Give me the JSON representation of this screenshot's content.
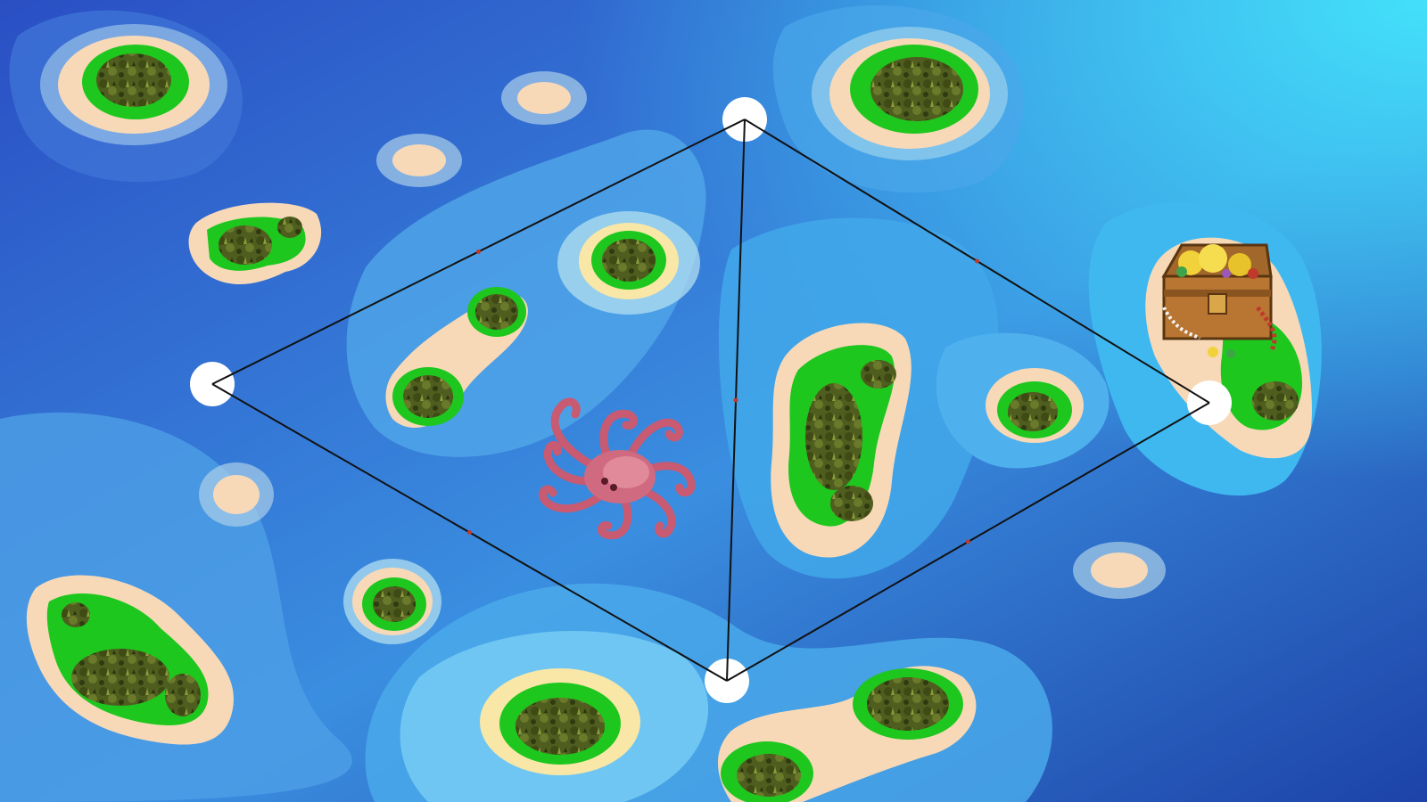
{
  "game": {
    "kind": "island-graph-puzzle",
    "palette": {
      "ocean_deep": "#2a4fc4",
      "ocean_light": "#43d6f5",
      "shallow_1": "#3c8fe0",
      "shallow_2": "#5fb4ef",
      "shallow_3": "#8fd5f7",
      "reef": "#a9d8e8",
      "sand": "#f7d9b8",
      "sand_yellow": "#f9e7a8",
      "grass": "#1ec71e",
      "forest": "#4c5a1c",
      "edge_line": "#111111",
      "edge_marker": "#c0392b",
      "node_fill": "#ffffff"
    },
    "graph": {
      "node_count": 4,
      "edge_count": 5,
      "nodes": [
        "west",
        "north",
        "south",
        "east"
      ],
      "edges": [
        [
          "west",
          "north"
        ],
        [
          "north",
          "east"
        ],
        [
          "east",
          "south"
        ],
        [
          "south",
          "west"
        ],
        [
          "north",
          "south"
        ]
      ]
    },
    "characters": {
      "octopus": "octopus-sprite",
      "treasure": "treasure-chest-sprite"
    }
  }
}
